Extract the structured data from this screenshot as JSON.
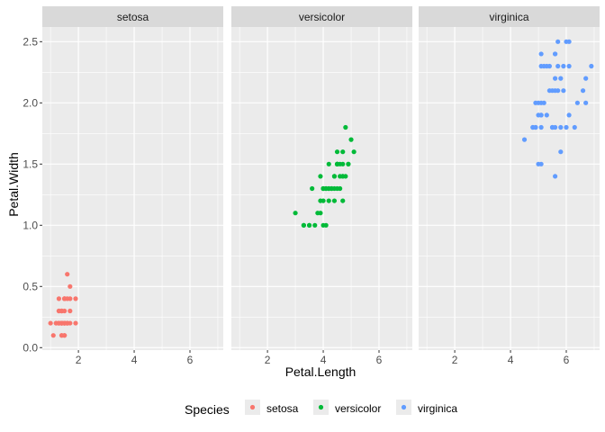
{
  "chart_data": {
    "type": "scatter",
    "facet_by": "Species",
    "xlabel": "Petal.Length",
    "ylabel": "Petal.Width",
    "xlim": [
      0.705,
      7.195
    ],
    "ylim": [
      -0.02,
      2.62
    ],
    "x_ticks": [
      2,
      4,
      6
    ],
    "y_ticks": [
      0.0,
      0.5,
      1.0,
      1.5,
      2.0,
      2.5
    ],
    "y_tick_labels": [
      "0.0",
      "0.5",
      "1.0",
      "1.5",
      "2.0",
      "2.5"
    ],
    "grid": true,
    "legend": {
      "title": "Species",
      "position": "bottom",
      "entries": [
        "setosa",
        "versicolor",
        "virginica"
      ]
    },
    "colors": {
      "setosa": "#F8766D",
      "versicolor": "#00BA38",
      "virginica": "#619CFF",
      "panel_bg": "#EBEBEB",
      "strip_bg": "#D9D9D9",
      "grid": "#FFFFFF"
    },
    "facets": [
      {
        "label": "setosa",
        "points": [
          [
            1.4,
            0.2
          ],
          [
            1.4,
            0.2
          ],
          [
            1.3,
            0.2
          ],
          [
            1.5,
            0.2
          ],
          [
            1.4,
            0.2
          ],
          [
            1.7,
            0.4
          ],
          [
            1.4,
            0.3
          ],
          [
            1.5,
            0.2
          ],
          [
            1.4,
            0.2
          ],
          [
            1.5,
            0.1
          ],
          [
            1.5,
            0.2
          ],
          [
            1.6,
            0.2
          ],
          [
            1.4,
            0.1
          ],
          [
            1.1,
            0.1
          ],
          [
            1.2,
            0.2
          ],
          [
            1.5,
            0.4
          ],
          [
            1.3,
            0.4
          ],
          [
            1.4,
            0.3
          ],
          [
            1.7,
            0.3
          ],
          [
            1.5,
            0.3
          ],
          [
            1.7,
            0.2
          ],
          [
            1.5,
            0.4
          ],
          [
            1.0,
            0.2
          ],
          [
            1.7,
            0.5
          ],
          [
            1.9,
            0.2
          ],
          [
            1.6,
            0.2
          ],
          [
            1.6,
            0.4
          ],
          [
            1.5,
            0.2
          ],
          [
            1.4,
            0.2
          ],
          [
            1.6,
            0.2
          ],
          [
            1.6,
            0.2
          ],
          [
            1.5,
            0.4
          ],
          [
            1.5,
            0.1
          ],
          [
            1.4,
            0.2
          ],
          [
            1.5,
            0.2
          ],
          [
            1.2,
            0.2
          ],
          [
            1.3,
            0.2
          ],
          [
            1.4,
            0.1
          ],
          [
            1.3,
            0.2
          ],
          [
            1.5,
            0.2
          ],
          [
            1.3,
            0.3
          ],
          [
            1.3,
            0.3
          ],
          [
            1.3,
            0.2
          ],
          [
            1.6,
            0.6
          ],
          [
            1.9,
            0.4
          ],
          [
            1.4,
            0.3
          ],
          [
            1.6,
            0.2
          ],
          [
            1.4,
            0.2
          ],
          [
            1.5,
            0.2
          ],
          [
            1.4,
            0.2
          ]
        ]
      },
      {
        "label": "versicolor",
        "points": [
          [
            4.7,
            1.4
          ],
          [
            4.5,
            1.5
          ],
          [
            4.9,
            1.5
          ],
          [
            4.0,
            1.3
          ],
          [
            4.6,
            1.5
          ],
          [
            4.5,
            1.3
          ],
          [
            4.7,
            1.6
          ],
          [
            3.3,
            1.0
          ],
          [
            4.6,
            1.3
          ],
          [
            3.9,
            1.4
          ],
          [
            3.5,
            1.0
          ],
          [
            4.2,
            1.5
          ],
          [
            4.0,
            1.0
          ],
          [
            4.7,
            1.4
          ],
          [
            3.6,
            1.3
          ],
          [
            4.4,
            1.4
          ],
          [
            4.5,
            1.5
          ],
          [
            4.1,
            1.0
          ],
          [
            4.5,
            1.5
          ],
          [
            3.9,
            1.1
          ],
          [
            4.8,
            1.8
          ],
          [
            4.0,
            1.3
          ],
          [
            4.9,
            1.5
          ],
          [
            4.7,
            1.2
          ],
          [
            4.3,
            1.3
          ],
          [
            4.4,
            1.4
          ],
          [
            4.8,
            1.4
          ],
          [
            5.0,
            1.7
          ],
          [
            4.5,
            1.5
          ],
          [
            3.5,
            1.0
          ],
          [
            3.8,
            1.1
          ],
          [
            3.7,
            1.0
          ],
          [
            3.9,
            1.2
          ],
          [
            5.1,
            1.6
          ],
          [
            4.5,
            1.5
          ],
          [
            4.5,
            1.6
          ],
          [
            4.7,
            1.5
          ],
          [
            4.4,
            1.3
          ],
          [
            4.1,
            1.3
          ],
          [
            4.0,
            1.3
          ],
          [
            4.4,
            1.2
          ],
          [
            4.6,
            1.4
          ],
          [
            4.0,
            1.2
          ],
          [
            3.3,
            1.0
          ],
          [
            4.2,
            1.3
          ],
          [
            4.2,
            1.2
          ],
          [
            4.2,
            1.3
          ],
          [
            4.3,
            1.3
          ],
          [
            3.0,
            1.1
          ],
          [
            4.1,
            1.3
          ]
        ]
      },
      {
        "label": "virginica",
        "points": [
          [
            6.0,
            2.5
          ],
          [
            5.1,
            1.9
          ],
          [
            5.9,
            2.1
          ],
          [
            5.6,
            1.8
          ],
          [
            5.8,
            2.2
          ],
          [
            6.6,
            2.1
          ],
          [
            4.5,
            1.7
          ],
          [
            6.3,
            1.8
          ],
          [
            5.8,
            1.8
          ],
          [
            6.1,
            2.5
          ],
          [
            5.1,
            2.0
          ],
          [
            5.3,
            1.9
          ],
          [
            5.5,
            2.1
          ],
          [
            5.0,
            2.0
          ],
          [
            5.1,
            2.4
          ],
          [
            5.3,
            2.3
          ],
          [
            5.5,
            1.8
          ],
          [
            6.7,
            2.2
          ],
          [
            6.9,
            2.3
          ],
          [
            5.0,
            1.5
          ],
          [
            5.7,
            2.3
          ],
          [
            4.9,
            2.0
          ],
          [
            6.7,
            2.0
          ],
          [
            4.9,
            1.8
          ],
          [
            5.7,
            2.1
          ],
          [
            6.0,
            1.8
          ],
          [
            4.8,
            1.8
          ],
          [
            4.9,
            1.8
          ],
          [
            5.6,
            2.1
          ],
          [
            5.8,
            1.6
          ],
          [
            6.1,
            1.9
          ],
          [
            6.4,
            2.0
          ],
          [
            5.6,
            2.2
          ],
          [
            5.1,
            1.5
          ],
          [
            5.6,
            1.4
          ],
          [
            6.1,
            2.3
          ],
          [
            5.6,
            2.4
          ],
          [
            5.5,
            1.8
          ],
          [
            4.8,
            1.8
          ],
          [
            5.4,
            2.1
          ],
          [
            5.6,
            2.4
          ],
          [
            5.1,
            2.3
          ],
          [
            5.1,
            1.9
          ],
          [
            5.9,
            2.3
          ],
          [
            5.7,
            2.5
          ],
          [
            5.2,
            2.3
          ],
          [
            5.0,
            1.9
          ],
          [
            5.2,
            2.0
          ],
          [
            5.4,
            2.3
          ],
          [
            5.1,
            1.8
          ]
        ]
      }
    ]
  }
}
